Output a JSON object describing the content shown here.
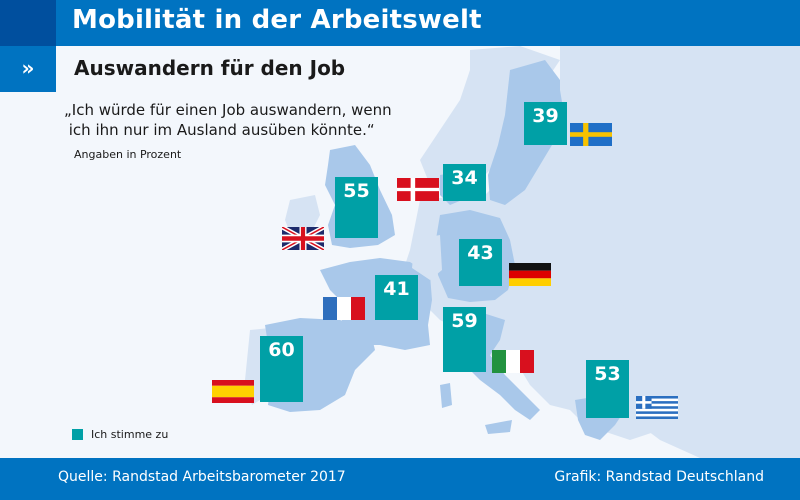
{
  "header": {
    "title": "Mobilität in der Arbeitswelt",
    "subtitle": "Auswandern für den Job",
    "subtitle_icon": "double-chevron-right-icon",
    "subtitle_icon_glyph": "»"
  },
  "colors": {
    "header_blue": "#0073c1",
    "header_dark_blue": "#004f9e",
    "bar_teal": "#00a0a6",
    "land_light": "#d6e3f3",
    "land_highlight": "#a9c8ea",
    "background": "#f3f7fc"
  },
  "chart_data": {
    "type": "bar",
    "title": "Auswandern für den Job",
    "question": "„Ich würde für einen Job auswandern, wenn\n ich ihn nur im Ausland ausüben könnte.“",
    "unit_note": "Angaben in Prozent",
    "legend": [
      {
        "label": "Ich stimme zu",
        "color": "#00a0a6"
      }
    ],
    "legend_position": "bottom-left",
    "categories": [
      "Schweden",
      "Dänemark",
      "Großbritannien",
      "Deutschland",
      "Frankreich",
      "Italien",
      "Spanien",
      "Griechenland"
    ],
    "series": [
      {
        "name": "Ich stimme zu",
        "values": [
          39,
          34,
          55,
          43,
          41,
          59,
          60,
          53
        ]
      }
    ],
    "flags": [
      "sweden-flag",
      "denmark-flag",
      "uk-flag",
      "germany-flag",
      "france-flag",
      "italy-flag",
      "spain-flag",
      "greece-flag"
    ],
    "value_labels": [
      "39",
      "34",
      "55",
      "43",
      "41",
      "59",
      "60",
      "53"
    ]
  },
  "footer": {
    "source": "Quelle: Randstad Arbeitsbarometer 2017",
    "credit": "Grafik: Randstad Deutschland"
  }
}
